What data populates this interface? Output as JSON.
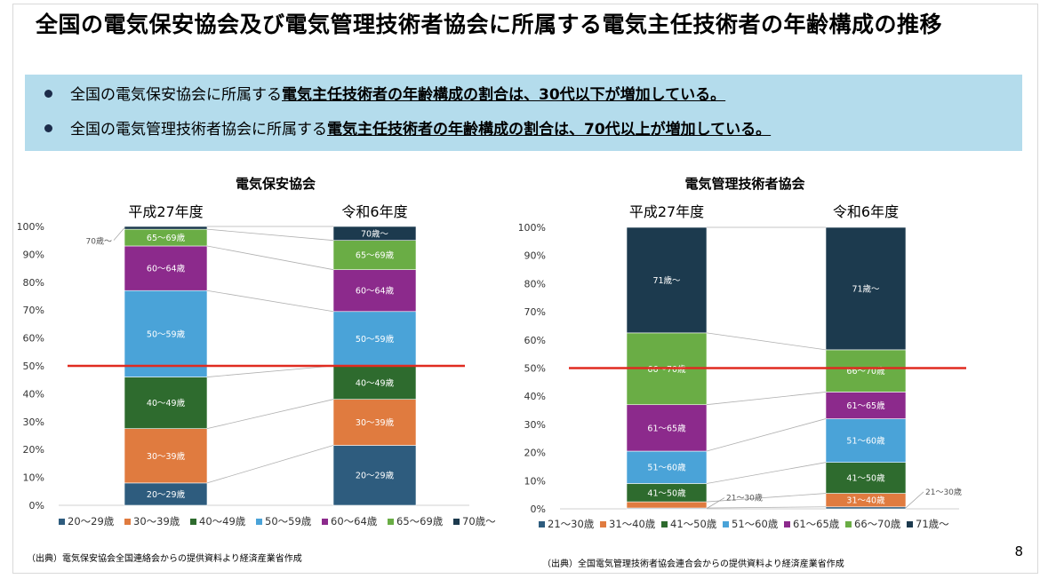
{
  "title": "全国の電気保安協会及び電気管理技術者協会に所属する電気主任技術者の年齢構成の推移",
  "summary": [
    {
      "plain": "全国の電気保安協会に所属する",
      "emphasis": "電気主任技術者の年齢構成の割合は、30代以下が増加している。"
    },
    {
      "plain": "全国の電気管理技術者協会に所属する",
      "emphasis": "電気主任技術者の年齢構成の割合は、70代以上が増加している。"
    }
  ],
  "colors": {
    "summary_bg": "#b4dcec",
    "threshold_line": "#e02b20"
  },
  "chart_data": [
    {
      "type": "bar",
      "stacked": true,
      "title": "電気保安協会",
      "categories": [
        "平成27年度",
        "令和6年度"
      ],
      "yticks": [
        "0%",
        "10%",
        "20%",
        "30%",
        "40%",
        "50%",
        "60%",
        "70%",
        "80%",
        "90%",
        "100%"
      ],
      "ylim": [
        0,
        100
      ],
      "reference_line": 50,
      "series": [
        {
          "name": "20～29歳",
          "color": "#2e5c7e",
          "values": [
            8,
            21.5
          ],
          "labels": [
            "20～29歳",
            "20～29歳"
          ]
        },
        {
          "name": "30～39歳",
          "color": "#e07b3f",
          "values": [
            19.5,
            16.5
          ],
          "labels": [
            "30～39歳",
            "30～39歳"
          ]
        },
        {
          "name": "40～49歳",
          "color": "#2e6b2e",
          "values": [
            18.5,
            12
          ],
          "labels": [
            "40～49歳",
            "40～49歳"
          ]
        },
        {
          "name": "50～59歳",
          "color": "#4aa3d8",
          "values": [
            31,
            19.5
          ],
          "labels": [
            "50～59歳",
            "50～59歳"
          ]
        },
        {
          "name": "60～64歳",
          "color": "#8c2a8c",
          "values": [
            16,
            15
          ],
          "labels": [
            "60～64歳",
            "60～64歳"
          ]
        },
        {
          "name": "65～69歳",
          "color": "#6aad45",
          "values": [
            6,
            10.5
          ],
          "labels": [
            "65～69歳",
            "65～69歳"
          ]
        },
        {
          "name": "70歳～",
          "color": "#1c3a4e",
          "values": [
            1,
            5
          ],
          "labels": [
            "",
            "70歳～"
          ]
        }
      ],
      "callouts": [
        {
          "text": "70歳～",
          "category": 0,
          "series": 6
        }
      ],
      "source": "（出典）電気保安協会全国連絡会からの提供資料より経済産業省作成"
    },
    {
      "type": "bar",
      "stacked": true,
      "title": "電気管理技術者協会",
      "categories": [
        "平成27年度",
        "令和6年度"
      ],
      "yticks": [
        "0%",
        "10%",
        "20%",
        "30%",
        "40%",
        "50%",
        "60%",
        "70%",
        "80%",
        "90%",
        "100%"
      ],
      "ylim": [
        0,
        100
      ],
      "reference_line": 50,
      "series": [
        {
          "name": "21～30歳",
          "color": "#2e5c7e",
          "values": [
            0.3,
            0.7
          ],
          "labels": [
            "",
            ""
          ]
        },
        {
          "name": "31～40歳",
          "color": "#e07b3f",
          "values": [
            2.2,
            4.8
          ],
          "labels": [
            "31～40歳",
            "31～40歳"
          ]
        },
        {
          "name": "41～50歳",
          "color": "#2e6b2e",
          "values": [
            6.5,
            11
          ],
          "labels": [
            "41～50歳",
            "41～50歳"
          ]
        },
        {
          "name": "51～60歳",
          "color": "#4aa3d8",
          "values": [
            11.5,
            15.5
          ],
          "labels": [
            "51～60歳",
            "51～60歳"
          ]
        },
        {
          "name": "61～65歳",
          "color": "#8c2a8c",
          "values": [
            16.5,
            9.5
          ],
          "labels": [
            "61～65歳",
            "61～65歳"
          ]
        },
        {
          "name": "66～70歳",
          "color": "#6aad45",
          "values": [
            25.5,
            15
          ],
          "labels": [
            "66～70歳",
            "66～70歳"
          ]
        },
        {
          "name": "71歳～",
          "color": "#1c3a4e",
          "values": [
            37.5,
            43.5
          ],
          "labels": [
            "71歳～",
            "71歳～"
          ]
        }
      ],
      "callouts": [
        {
          "text": "21～30歳",
          "category": 0,
          "series": 0
        },
        {
          "text": "21～30歳",
          "category": 1,
          "series": 0
        }
      ],
      "source": "（出典）全国電気管理技術者協会連合会からの提供資料より経済産業省作成"
    }
  ],
  "page_number": "8"
}
